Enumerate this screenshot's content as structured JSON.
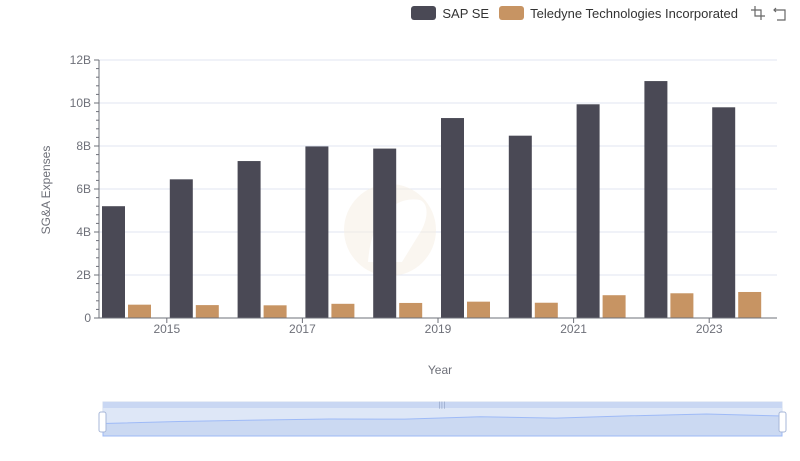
{
  "legend": {
    "series_0": "SAP SE",
    "series_1": "Teledyne Technologies Incorporated"
  },
  "toolbox": {
    "icons": [
      "zoom-icon",
      "restore-icon"
    ]
  },
  "colors": {
    "series_0": "#4a4955",
    "series_1": "#c79463",
    "slider": "#d7e3f7"
  },
  "chart_data": {
    "type": "bar",
    "title": "",
    "xlabel": "Year",
    "ylabel": "SG&A Expenses",
    "categories": [
      "2014",
      "2015",
      "2016",
      "2017",
      "2018",
      "2019",
      "2020",
      "2021",
      "2022",
      "2023"
    ],
    "x_tick_labels": [
      "2015",
      "2017",
      "2019",
      "2021",
      "2023"
    ],
    "y_tick_labels": [
      "0",
      "2B",
      "4B",
      "6B",
      "8B",
      "10B",
      "12B"
    ],
    "ylim": [
      0,
      12000000000
    ],
    "grid": true,
    "legend_position": "top-right",
    "series": [
      {
        "name": "SAP SE",
        "values": [
          5200000000,
          6450000000,
          7300000000,
          7980000000,
          7880000000,
          9300000000,
          8480000000,
          9940000000,
          11020000000,
          9800000000
        ]
      },
      {
        "name": "Teledyne Technologies Incorporated",
        "values": [
          620000000,
          600000000,
          590000000,
          660000000,
          700000000,
          760000000,
          710000000,
          1060000000,
          1150000000,
          1210000000
        ]
      }
    ]
  }
}
